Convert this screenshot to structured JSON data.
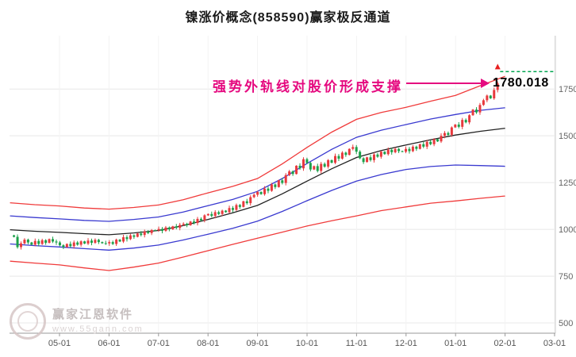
{
  "title": "镍涨价概念(858590)赢家极反通道",
  "annotation": {
    "text": "强势外轨线对股价形成支撑",
    "color": "#e5097f"
  },
  "price_label": "1780.018",
  "watermark": {
    "brand": "赢家江恩软件",
    "site": "www.55gann.com"
  },
  "chart_data": {
    "type": "candlestick",
    "title": "镍涨价概念(858590)赢家极反通道",
    "xlabel": "",
    "ylabel": "",
    "grid": true,
    "legend": "none",
    "ylim": [
      445,
      2035
    ],
    "y_ticks": [
      500,
      750,
      1000,
      1250,
      1500,
      1750
    ],
    "x_tick_labels": [
      "05-01",
      "06-01",
      "07-01",
      "08-01",
      "09-01",
      "10-01",
      "11-01",
      "12-01",
      "01-01",
      "02-01",
      "03-01"
    ],
    "last_price": 1780.018,
    "colors": {
      "up": "#e8393d",
      "down": "#1ca04a",
      "outer_band": "#f03b3b",
      "inner_band": "#3a3ad0",
      "mid_band": "#222222",
      "projection": "#00a650",
      "marker": "#e82020"
    },
    "candles": {
      "start_month": -0.92,
      "step_month": 0.07131,
      "first_open": 968,
      "closes": [
        960,
        905,
        925,
        945,
        930,
        918,
        938,
        922,
        942,
        928,
        948,
        935,
        930,
        915,
        905,
        922,
        910,
        930,
        918,
        936,
        924,
        940,
        928,
        944,
        932,
        926,
        925,
        932,
        922,
        945,
        935,
        958,
        948,
        968,
        960,
        978,
        970,
        988,
        980,
        996,
        995,
        1002,
        992,
        1010,
        1000,
        1016,
        1008,
        1024,
        1030,
        1022,
        1042,
        1034,
        1056,
        1048,
        1075,
        1082,
        1072,
        1092,
        1082,
        1100,
        1092,
        1114,
        1104,
        1130,
        1120,
        1150,
        1140,
        1172,
        1185,
        1200,
        1188,
        1218,
        1206,
        1240,
        1226,
        1262,
        1248,
        1290,
        1310,
        1296,
        1340,
        1326,
        1375,
        1355,
        1320,
        1338,
        1312,
        1350,
        1335,
        1370,
        1356,
        1392,
        1378,
        1410,
        1398,
        1430,
        1440,
        1415,
        1380,
        1360,
        1385,
        1370,
        1400,
        1388,
        1415,
        1402,
        1425,
        1412,
        1430,
        1418,
        1415,
        1430,
        1418,
        1442,
        1430,
        1455,
        1442,
        1468,
        1455,
        1482,
        1470,
        1500,
        1515,
        1505,
        1545,
        1560,
        1548,
        1585,
        1572,
        1610,
        1640,
        1625,
        1665,
        1690,
        1715,
        1700,
        1745,
        1780
      ]
    },
    "channels": [
      {
        "name": "outer-upper",
        "color_key": "outer_band",
        "points": [
          [
            -1.0,
            1142
          ],
          [
            -0.5,
            1132
          ],
          [
            0,
            1125
          ],
          [
            0.5,
            1114
          ],
          [
            1,
            1108
          ],
          [
            1.5,
            1117
          ],
          [
            2,
            1130
          ],
          [
            2.5,
            1158
          ],
          [
            3,
            1195
          ],
          [
            3.5,
            1230
          ],
          [
            4,
            1272
          ],
          [
            4.5,
            1350
          ],
          [
            5,
            1438
          ],
          [
            5.5,
            1520
          ],
          [
            6,
            1588
          ],
          [
            6.5,
            1625
          ],
          [
            7,
            1652
          ],
          [
            7.5,
            1685
          ],
          [
            8,
            1716
          ],
          [
            8.5,
            1768
          ],
          [
            9.0,
            1818
          ]
        ]
      },
      {
        "name": "inner-upper",
        "color_key": "inner_band",
        "points": [
          [
            -1.0,
            1072
          ],
          [
            -0.5,
            1063
          ],
          [
            0,
            1056
          ],
          [
            0.5,
            1048
          ],
          [
            1,
            1043
          ],
          [
            1.5,
            1053
          ],
          [
            2,
            1066
          ],
          [
            2.5,
            1093
          ],
          [
            3,
            1127
          ],
          [
            3.5,
            1160
          ],
          [
            4,
            1203
          ],
          [
            4.5,
            1272
          ],
          [
            5,
            1352
          ],
          [
            5.5,
            1428
          ],
          [
            6,
            1492
          ],
          [
            6.5,
            1530
          ],
          [
            7,
            1560
          ],
          [
            7.5,
            1590
          ],
          [
            8,
            1614
          ],
          [
            8.5,
            1636
          ],
          [
            9.0,
            1650
          ]
        ]
      },
      {
        "name": "middle",
        "color_key": "mid_band",
        "points": [
          [
            -1.0,
            998
          ],
          [
            -0.5,
            990
          ],
          [
            0,
            984
          ],
          [
            0.5,
            977
          ],
          [
            1,
            971
          ],
          [
            1.5,
            981
          ],
          [
            2,
            994
          ],
          [
            2.5,
            1020
          ],
          [
            3,
            1053
          ],
          [
            3.5,
            1088
          ],
          [
            4,
            1128
          ],
          [
            4.5,
            1190
          ],
          [
            5,
            1258
          ],
          [
            5.5,
            1324
          ],
          [
            6,
            1384
          ],
          [
            6.5,
            1421
          ],
          [
            7,
            1451
          ],
          [
            7.5,
            1479
          ],
          [
            8,
            1504
          ],
          [
            8.5,
            1524
          ],
          [
            9.0,
            1540
          ]
        ]
      },
      {
        "name": "inner-lower",
        "color_key": "inner_band",
        "points": [
          [
            -1.0,
            922
          ],
          [
            -0.5,
            913
          ],
          [
            0,
            906
          ],
          [
            0.5,
            897
          ],
          [
            1,
            889
          ],
          [
            1.5,
            900
          ],
          [
            2,
            916
          ],
          [
            2.5,
            943
          ],
          [
            3,
            974
          ],
          [
            3.5,
            1006
          ],
          [
            4,
            1044
          ],
          [
            4.5,
            1096
          ],
          [
            5,
            1153
          ],
          [
            5.5,
            1208
          ],
          [
            6,
            1258
          ],
          [
            6.5,
            1293
          ],
          [
            7,
            1320
          ],
          [
            7.5,
            1336
          ],
          [
            8,
            1344
          ],
          [
            8.5,
            1341
          ],
          [
            9.0,
            1337
          ]
        ]
      },
      {
        "name": "outer-lower",
        "color_key": "outer_band",
        "points": [
          [
            -1.0,
            830
          ],
          [
            -0.5,
            820
          ],
          [
            0,
            810
          ],
          [
            0.5,
            794
          ],
          [
            1,
            780
          ],
          [
            1.5,
            798
          ],
          [
            2,
            820
          ],
          [
            2.5,
            852
          ],
          [
            3,
            886
          ],
          [
            3.5,
            920
          ],
          [
            4,
            953
          ],
          [
            4.5,
            985
          ],
          [
            5,
            1018
          ],
          [
            5.5,
            1046
          ],
          [
            6,
            1072
          ],
          [
            6.5,
            1100
          ],
          [
            7,
            1120
          ],
          [
            7.5,
            1140
          ],
          [
            8,
            1152
          ],
          [
            8.5,
            1166
          ],
          [
            9.0,
            1178
          ]
        ]
      }
    ],
    "projection_line": {
      "from_month": 8.9,
      "to_month": 10.05,
      "value": 1843,
      "dash": [
        4,
        3
      ]
    },
    "marker": {
      "month": 8.85,
      "value": 1868
    }
  }
}
